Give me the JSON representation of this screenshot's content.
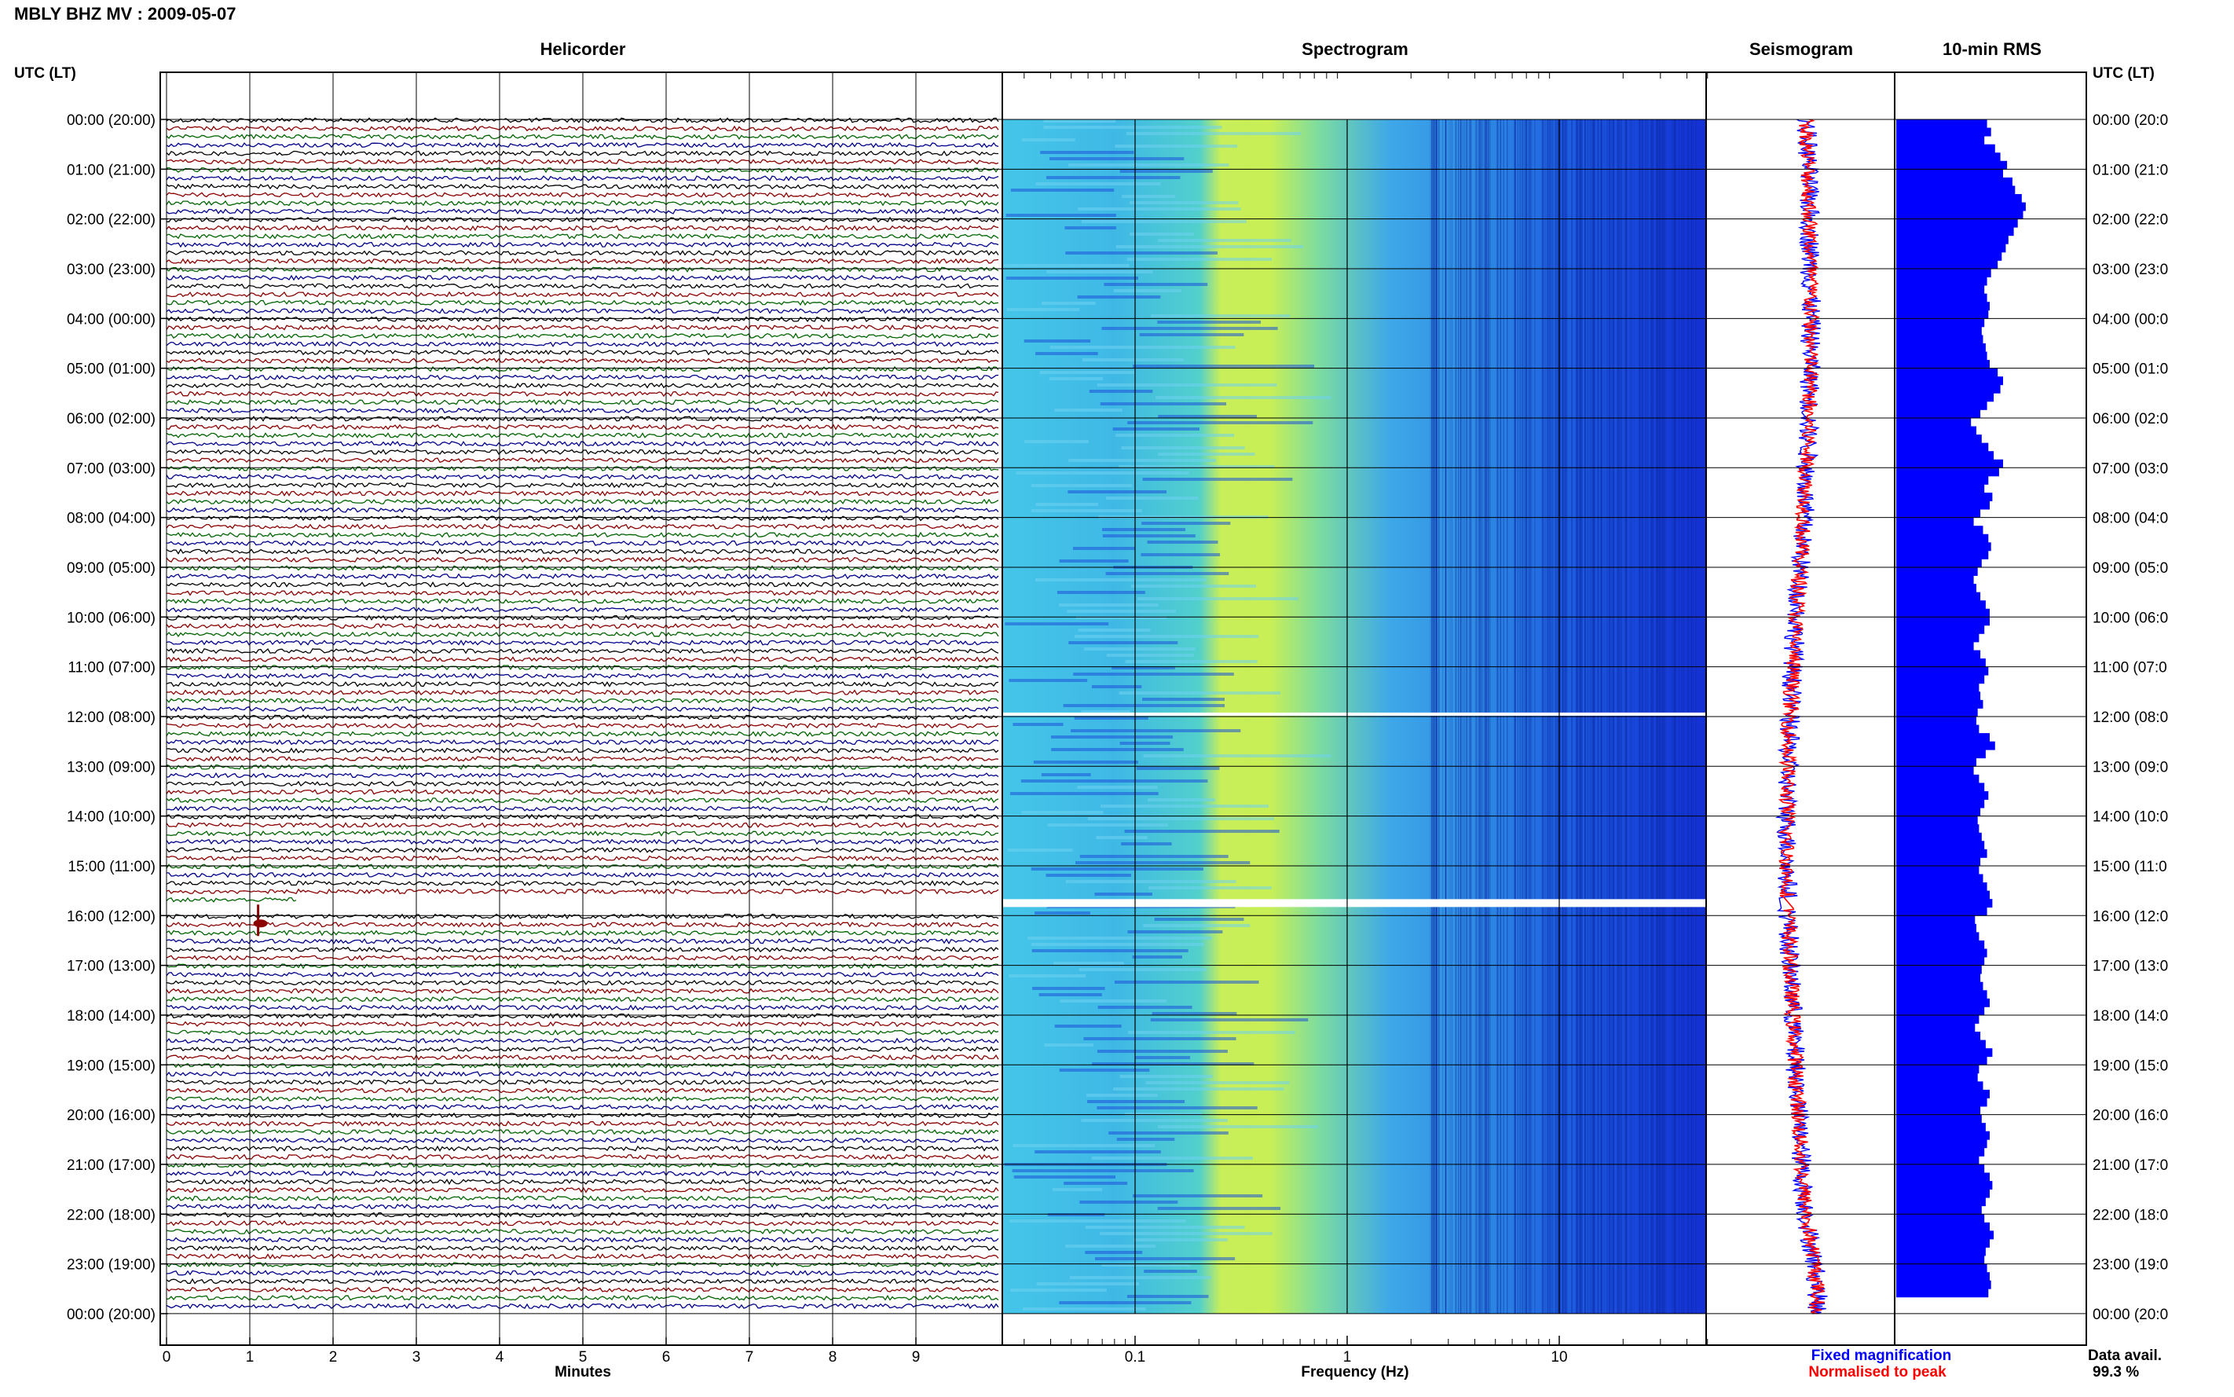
{
  "header": {
    "title": "MBLY BHZ MV : 2009-05-07"
  },
  "panels": {
    "helicorder": "Helicorder",
    "spectrogram": "Spectrogram",
    "seismogram": "Seismogram",
    "rms": "10-min RMS"
  },
  "time_axis_label_left": "UTC (LT)",
  "time_axis_label_right": "UTC (LT)",
  "time_labels": [
    "00:00 (20:00)",
    "01:00 (21:00)",
    "02:00 (22:00)",
    "03:00 (23:00)",
    "04:00 (00:00)",
    "05:00 (01:00)",
    "06:00 (02:00)",
    "07:00 (03:00)",
    "08:00 (04:00)",
    "09:00 (05:00)",
    "10:00 (06:00)",
    "11:00 (07:00)",
    "12:00 (08:00)",
    "13:00 (09:00)",
    "14:00 (10:00)",
    "15:00 (11:00)",
    "16:00 (12:00)",
    "17:00 (13:00)",
    "18:00 (14:00)",
    "19:00 (15:00)",
    "20:00 (16:00)",
    "21:00 (17:00)",
    "22:00 (18:00)",
    "23:00 (19:00)",
    "00:00 (20:00)"
  ],
  "time_labels_right": [
    "00:00 (20:0",
    "01:00 (21:0",
    "02:00 (22:0",
    "03:00 (23:0",
    "04:00 (00:0",
    "05:00 (01:0",
    "06:00 (02:0",
    "07:00 (03:0",
    "08:00 (04:0",
    "09:00 (05:0",
    "10:00 (06:0",
    "11:00 (07:0",
    "12:00 (08:0",
    "13:00 (09:0",
    "14:00 (10:0",
    "15:00 (11:0",
    "16:00 (12:0",
    "17:00 (13:0",
    "18:00 (14:0",
    "19:00 (15:0",
    "20:00 (16:0",
    "21:00 (17:0",
    "22:00 (18:0",
    "23:00 (19:0",
    "00:00 (20:0"
  ],
  "minutes_label": "Minutes",
  "frequency_label": "Frequency (Hz)",
  "legend": {
    "fixed": "Fixed magnification",
    "normalised": "Normalised to peak",
    "fixed_color": "#0000ff",
    "normalised_color": "#ff0000"
  },
  "data_avail_label": "Data avail.",
  "data_avail_value": "99.3 %",
  "colors": {
    "trace_cycle": [
      "#000000",
      "#8b0000",
      "#006400",
      "#00008b"
    ],
    "rms_bar": "#0000ff"
  },
  "chart_data": [
    {
      "type": "line",
      "panel": "Helicorder",
      "xlabel": "Minutes",
      "x_ticks": [
        "0",
        "1",
        "2",
        "3",
        "4",
        "5",
        "6",
        "7",
        "8",
        "9"
      ],
      "xlim": [
        0,
        10
      ],
      "traces_per_hour": 6,
      "gaps_utc": [
        "15:40-16:00"
      ],
      "event_utc": "16:00 + 1 min"
    },
    {
      "type": "heatmap",
      "panel": "Spectrogram",
      "xlabel": "Frequency (Hz)",
      "x_scale": "log",
      "x_ticks": [
        "0.1",
        "1",
        "10"
      ],
      "xlim": [
        0.03,
        50
      ],
      "peak_band_hz": [
        0.2,
        0.5
      ],
      "gaps_utc": [
        "11:55",
        "15:40-15:50"
      ]
    },
    {
      "type": "line",
      "panel": "Seismogram",
      "series": [
        {
          "name": "Fixed magnification",
          "color": "#0000ff"
        },
        {
          "name": "Normalised to peak",
          "color": "#ff0000"
        }
      ]
    },
    {
      "type": "bar",
      "panel": "10-min RMS",
      "orientation": "horizontal",
      "values": [
        0.68,
        0.71,
        0.66,
        0.74,
        0.78,
        0.83,
        0.8,
        0.87,
        0.89,
        0.94,
        0.97,
        0.95,
        0.91,
        0.88,
        0.84,
        0.82,
        0.79,
        0.76,
        0.71,
        0.68,
        0.66,
        0.68,
        0.7,
        0.69,
        0.66,
        0.64,
        0.65,
        0.67,
        0.68,
        0.7,
        0.76,
        0.8,
        0.78,
        0.73,
        0.68,
        0.63,
        0.56,
        0.6,
        0.64,
        0.69,
        0.73,
        0.8,
        0.77,
        0.69,
        0.66,
        0.72,
        0.7,
        0.63,
        0.58,
        0.65,
        0.69,
        0.71,
        0.69,
        0.64,
        0.61,
        0.58,
        0.6,
        0.63,
        0.67,
        0.7,
        0.7,
        0.66,
        0.62,
        0.58,
        0.63,
        0.67,
        0.69,
        0.66,
        0.62,
        0.63,
        0.65,
        0.61,
        0.6,
        0.62,
        0.7,
        0.74,
        0.67,
        0.6,
        0.58,
        0.62,
        0.66,
        0.69,
        0.66,
        0.63,
        0.61,
        0.62,
        0.64,
        0.66,
        0.68,
        0.63,
        0.62,
        0.65,
        0.68,
        0.7,
        0.72,
        0.68,
        0.59,
        0.6,
        0.62,
        0.66,
        0.68,
        0.66,
        0.64,
        0.63,
        0.65,
        0.68,
        0.7,
        0.66,
        0.62,
        0.59,
        0.63,
        0.67,
        0.72,
        0.68,
        0.62,
        0.61,
        0.65,
        0.7,
        0.68,
        0.63,
        0.64,
        0.67,
        0.7,
        0.68,
        0.66,
        0.62,
        0.66,
        0.7,
        0.72,
        0.7,
        0.67,
        0.64,
        0.66,
        0.7,
        0.73,
        0.7,
        0.67,
        0.66,
        0.68,
        0.7,
        0.71,
        0.69
      ]
    }
  ]
}
